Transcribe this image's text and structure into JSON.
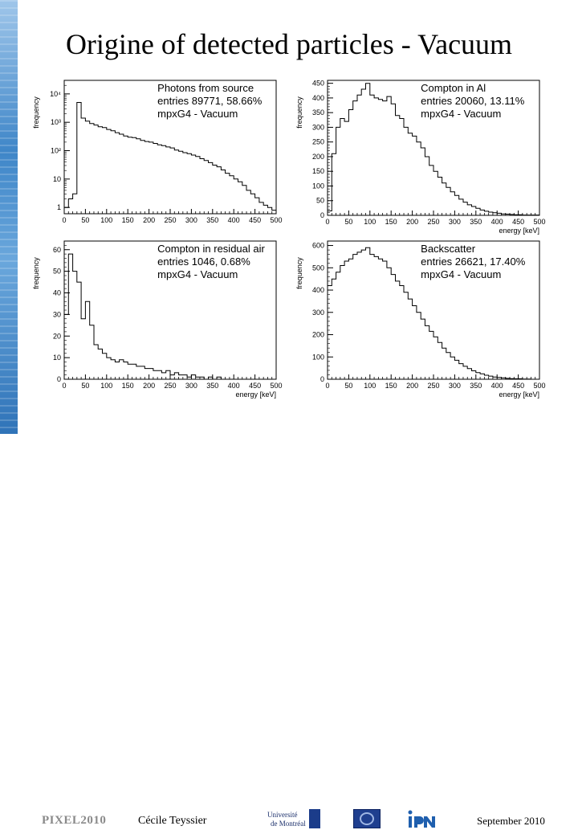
{
  "slide": {
    "title": "Origine of detected particles - Vacuum",
    "footer": {
      "conference": "PIXEL2010",
      "author": "Cécile Teyssier",
      "date": "September 2010",
      "udem_logo_line1": "Université",
      "udem_logo_line2": "de Montréal"
    },
    "colors": {
      "band": "#3f86c8",
      "histogram": "#000000",
      "udem": "#1b3c8a",
      "ipnl": "#1f5fae"
    }
  },
  "chart_data": [
    {
      "type": "histogram",
      "legend_lines": [
        "Photons from source",
        "entries 89771, 58.66%",
        "mpxG4 - Vacuum"
      ],
      "xlabel": "",
      "ylabel": "frequency",
      "yscale": "log",
      "xlim": [
        0,
        500
      ],
      "ylim": [
        0.6,
        30000
      ],
      "xticks": [
        "0",
        "50",
        "100",
        "150",
        "200",
        "250",
        "300",
        "350",
        "400",
        "450",
        "500"
      ],
      "yticks": [
        {
          "v": 1,
          "t": "1"
        },
        {
          "v": 10,
          "t": "10"
        },
        {
          "v": 100,
          "t": "10²"
        },
        {
          "v": 1000,
          "t": "10³"
        },
        {
          "v": 10000,
          "t": "10⁴"
        }
      ],
      "bin_width": 10,
      "values": [
        1,
        2,
        3,
        5000,
        1400,
        1100,
        900,
        800,
        700,
        650,
        560,
        500,
        430,
        380,
        330,
        300,
        290,
        260,
        230,
        210,
        200,
        180,
        160,
        150,
        135,
        125,
        105,
        95,
        85,
        78,
        70,
        62,
        52,
        45,
        38,
        31,
        27,
        21,
        16,
        13,
        10,
        8,
        6,
        4,
        3,
        2.2,
        1.5,
        1.2,
        1,
        0.8
      ]
    },
    {
      "type": "histogram",
      "legend_lines": [
        "Compton in Al",
        "entries 20060, 13.11%",
        "mpxG4 - Vacuum"
      ],
      "xlabel": "energy [keV]",
      "ylabel": "frequency",
      "yscale": "linear",
      "xlim": [
        0,
        500
      ],
      "ylim": [
        0,
        460
      ],
      "xticks": [
        "0",
        "50",
        "100",
        "150",
        "200",
        "250",
        "300",
        "350",
        "400",
        "450",
        "500"
      ],
      "yticks": [
        {
          "v": 0,
          "t": "0"
        },
        {
          "v": 50,
          "t": "50"
        },
        {
          "v": 100,
          "t": "100"
        },
        {
          "v": 150,
          "t": "150"
        },
        {
          "v": 200,
          "t": "200"
        },
        {
          "v": 250,
          "t": "250"
        },
        {
          "v": 300,
          "t": "300"
        },
        {
          "v": 350,
          "t": "350"
        },
        {
          "v": 400,
          "t": "400"
        },
        {
          "v": 450,
          "t": "450"
        }
      ],
      "bin_width": 10,
      "values": [
        15,
        210,
        300,
        330,
        320,
        360,
        390,
        410,
        430,
        450,
        410,
        400,
        395,
        390,
        405,
        380,
        340,
        330,
        300,
        280,
        270,
        250,
        230,
        200,
        170,
        150,
        130,
        110,
        95,
        80,
        68,
        55,
        45,
        36,
        30,
        24,
        18,
        14,
        11,
        9,
        7,
        5,
        4,
        3,
        2,
        2,
        1,
        1,
        1,
        1
      ]
    },
    {
      "type": "histogram",
      "legend_lines": [
        "Compton in residual air",
        "entries 1046, 0.68%",
        "mpxG4 - Vacuum"
      ],
      "xlabel": "energy [keV]",
      "ylabel": "frequency",
      "yscale": "linear",
      "xlim": [
        0,
        500
      ],
      "ylim": [
        0,
        64
      ],
      "xticks": [
        "0",
        "50",
        "100",
        "150",
        "200",
        "250",
        "300",
        "350",
        "400",
        "450",
        "500"
      ],
      "yticks": [
        {
          "v": 0,
          "t": "0"
        },
        {
          "v": 10,
          "t": "10"
        },
        {
          "v": 20,
          "t": "20"
        },
        {
          "v": 30,
          "t": "30"
        },
        {
          "v": 40,
          "t": "40"
        },
        {
          "v": 50,
          "t": "50"
        },
        {
          "v": 60,
          "t": "60"
        }
      ],
      "bin_width": 10,
      "values": [
        30,
        58,
        50,
        45,
        28,
        36,
        25,
        16,
        14,
        12,
        10,
        9,
        8,
        9,
        8,
        7,
        7,
        6,
        6,
        5,
        5,
        4,
        4,
        3,
        4,
        2,
        3,
        2,
        2,
        1,
        2,
        1,
        1,
        0,
        1,
        0,
        1,
        0,
        0,
        0,
        0,
        0,
        0,
        0,
        0,
        0,
        0,
        0,
        0,
        0
      ]
    },
    {
      "type": "histogram",
      "legend_lines": [
        "Backscatter",
        "entries 26621, 17.40%",
        "mpxG4 - Vacuum"
      ],
      "xlabel": "energy [keV]",
      "ylabel": "frequency",
      "yscale": "linear",
      "xlim": [
        0,
        500
      ],
      "ylim": [
        0,
        620
      ],
      "xticks": [
        "0",
        "50",
        "100",
        "150",
        "200",
        "250",
        "300",
        "350",
        "400",
        "450",
        "500"
      ],
      "yticks": [
        {
          "v": 0,
          "t": "0"
        },
        {
          "v": 100,
          "t": "100"
        },
        {
          "v": 200,
          "t": "200"
        },
        {
          "v": 300,
          "t": "300"
        },
        {
          "v": 400,
          "t": "400"
        },
        {
          "v": 500,
          "t": "500"
        },
        {
          "v": 600,
          "t": "600"
        }
      ],
      "bin_width": 10,
      "values": [
        420,
        450,
        480,
        510,
        530,
        540,
        560,
        570,
        580,
        590,
        560,
        550,
        540,
        530,
        500,
        470,
        440,
        420,
        390,
        360,
        330,
        300,
        270,
        240,
        215,
        190,
        165,
        140,
        120,
        100,
        85,
        70,
        58,
        48,
        38,
        30,
        24,
        18,
        14,
        10,
        8,
        6,
        4,
        3,
        2,
        2,
        1,
        1,
        0,
        0
      ]
    }
  ]
}
